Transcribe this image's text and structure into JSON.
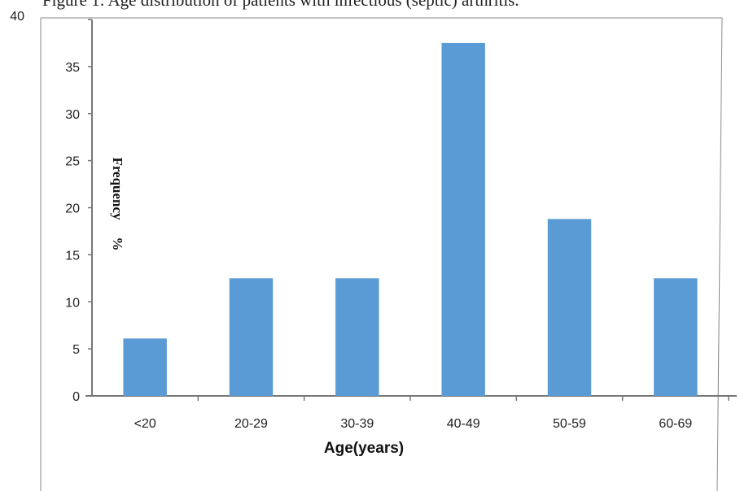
{
  "chart_data": {
    "type": "bar",
    "title": "Figure 1: Age distribution of patients with infectious (septic) arthritis.",
    "xlabel": "Age(years)",
    "ylabel_word": "Frequency",
    "ylabel_unit": "%",
    "categories": [
      "<20",
      "20-29",
      "30-39",
      "40-49",
      "50-59",
      "60-69"
    ],
    "values": [
      6.1,
      12.5,
      12.5,
      37.5,
      18.8,
      12.5
    ],
    "ylim": [
      0,
      40
    ],
    "yticks": [
      0,
      5,
      10,
      15,
      20,
      25,
      30,
      35,
      40
    ],
    "bar_color": "#5b9bd5",
    "grid": false,
    "legend": "none"
  }
}
